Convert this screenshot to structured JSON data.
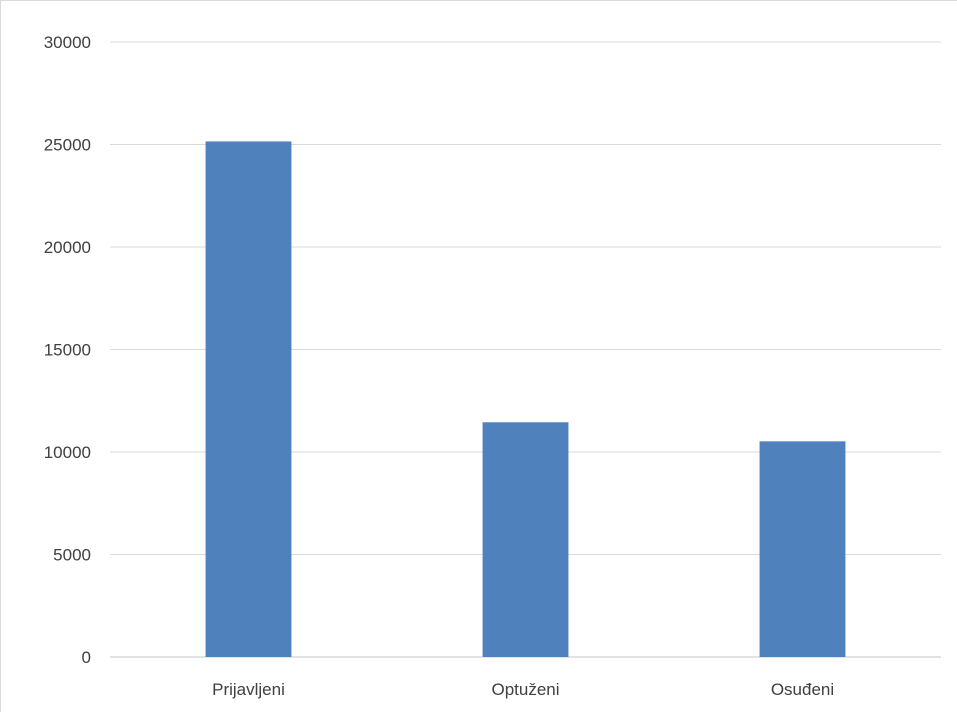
{
  "chart_data": {
    "type": "bar",
    "categories": [
      "Prijavljeni",
      "Optuženi",
      "Osuđeni"
    ],
    "values": [
      25150,
      11450,
      10520
    ],
    "ylim": [
      0,
      30000
    ],
    "yticks": [
      "0",
      "5000",
      "10000",
      "15000",
      "20000",
      "25000",
      "30000"
    ],
    "grid": true,
    "legend": "none",
    "colors": {
      "bar": "#4f81bd",
      "grid": "#d9d9d9",
      "axis": "#d9d9d9",
      "text": "#404040"
    }
  }
}
